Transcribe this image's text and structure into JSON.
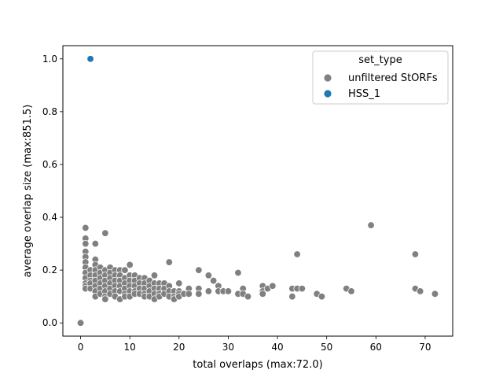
{
  "chart_data": {
    "type": "scatter",
    "xlabel": "total overlaps (max:72.0)",
    "ylabel": "average overlap size (max:851.5)",
    "xlim": [
      -3.6,
      75.6
    ],
    "ylim": [
      -0.05,
      1.05
    ],
    "x_ticks": [
      0,
      10,
      20,
      30,
      40,
      50,
      60,
      70
    ],
    "y_ticks": [
      0.0,
      0.2,
      0.4,
      0.6,
      0.8,
      1.0
    ],
    "x_tick_labels": [
      "0",
      "10",
      "20",
      "30",
      "40",
      "50",
      "60",
      "70"
    ],
    "y_tick_labels": [
      "0.0",
      "0.2",
      "0.4",
      "0.6",
      "0.8",
      "1.0"
    ],
    "grid": false,
    "legend": {
      "title": "set_type",
      "position": "top-right",
      "entries": [
        "unfiltered StORFs",
        "HSS_1"
      ]
    },
    "series": [
      {
        "name": "unfiltered StORFs",
        "color": "#808080",
        "points": [
          [
            0,
            0.0
          ],
          [
            1,
            0.36
          ],
          [
            1,
            0.32
          ],
          [
            1,
            0.3
          ],
          [
            1,
            0.27
          ],
          [
            1,
            0.25
          ],
          [
            1,
            0.23
          ],
          [
            1,
            0.21
          ],
          [
            1,
            0.19
          ],
          [
            1,
            0.17
          ],
          [
            1,
            0.15
          ],
          [
            1,
            0.14
          ],
          [
            1,
            0.13
          ],
          [
            2,
            0.2
          ],
          [
            2,
            0.18
          ],
          [
            2,
            0.16
          ],
          [
            2,
            0.15
          ],
          [
            2,
            0.13
          ],
          [
            3,
            0.3
          ],
          [
            3,
            0.24
          ],
          [
            3,
            0.22
          ],
          [
            3,
            0.2
          ],
          [
            3,
            0.18
          ],
          [
            3,
            0.16
          ],
          [
            3,
            0.14
          ],
          [
            3,
            0.12
          ],
          [
            3,
            0.1
          ],
          [
            4,
            0.21
          ],
          [
            4,
            0.19
          ],
          [
            4,
            0.17
          ],
          [
            4,
            0.15
          ],
          [
            4,
            0.13
          ],
          [
            4,
            0.11
          ],
          [
            5,
            0.34
          ],
          [
            5,
            0.2
          ],
          [
            5,
            0.18
          ],
          [
            5,
            0.16
          ],
          [
            5,
            0.14
          ],
          [
            5,
            0.12
          ],
          [
            5,
            0.1
          ],
          [
            5,
            0.09
          ],
          [
            6,
            0.21
          ],
          [
            6,
            0.19
          ],
          [
            6,
            0.17
          ],
          [
            6,
            0.15
          ],
          [
            6,
            0.13
          ],
          [
            6,
            0.11
          ],
          [
            7,
            0.2
          ],
          [
            7,
            0.18
          ],
          [
            7,
            0.16
          ],
          [
            7,
            0.14
          ],
          [
            7,
            0.12
          ],
          [
            7,
            0.1
          ],
          [
            8,
            0.2
          ],
          [
            8,
            0.18
          ],
          [
            8,
            0.16
          ],
          [
            8,
            0.14
          ],
          [
            8,
            0.12
          ],
          [
            8,
            0.09
          ],
          [
            9,
            0.2
          ],
          [
            9,
            0.17
          ],
          [
            9,
            0.15
          ],
          [
            9,
            0.13
          ],
          [
            9,
            0.11
          ],
          [
            9,
            0.1
          ],
          [
            10,
            0.22
          ],
          [
            10,
            0.18
          ],
          [
            10,
            0.16
          ],
          [
            10,
            0.14
          ],
          [
            10,
            0.12
          ],
          [
            10,
            0.1
          ],
          [
            11,
            0.18
          ],
          [
            11,
            0.16
          ],
          [
            11,
            0.14
          ],
          [
            11,
            0.12
          ],
          [
            11,
            0.11
          ],
          [
            12,
            0.17
          ],
          [
            12,
            0.15
          ],
          [
            12,
            0.13
          ],
          [
            12,
            0.11
          ],
          [
            13,
            0.17
          ],
          [
            13,
            0.15
          ],
          [
            13,
            0.13
          ],
          [
            13,
            0.11
          ],
          [
            13,
            0.1
          ],
          [
            14,
            0.16
          ],
          [
            14,
            0.14
          ],
          [
            14,
            0.12
          ],
          [
            14,
            0.1
          ],
          [
            15,
            0.18
          ],
          [
            15,
            0.15
          ],
          [
            15,
            0.13
          ],
          [
            15,
            0.11
          ],
          [
            15,
            0.09
          ],
          [
            16,
            0.15
          ],
          [
            16,
            0.13
          ],
          [
            16,
            0.11
          ],
          [
            16,
            0.1
          ],
          [
            17,
            0.15
          ],
          [
            17,
            0.13
          ],
          [
            17,
            0.11
          ],
          [
            18,
            0.23
          ],
          [
            18,
            0.14
          ],
          [
            18,
            0.12
          ],
          [
            18,
            0.1
          ],
          [
            19,
            0.12
          ],
          [
            19,
            0.1
          ],
          [
            19,
            0.09
          ],
          [
            20,
            0.15
          ],
          [
            20,
            0.12
          ],
          [
            20,
            0.11
          ],
          [
            20,
            0.1
          ],
          [
            21,
            0.11
          ],
          [
            22,
            0.13
          ],
          [
            22,
            0.11
          ],
          [
            24,
            0.2
          ],
          [
            24,
            0.13
          ],
          [
            24,
            0.11
          ],
          [
            26,
            0.18
          ],
          [
            26,
            0.12
          ],
          [
            27,
            0.16
          ],
          [
            28,
            0.14
          ],
          [
            28,
            0.12
          ],
          [
            29,
            0.12
          ],
          [
            30,
            0.12
          ],
          [
            32,
            0.19
          ],
          [
            32,
            0.11
          ],
          [
            33,
            0.13
          ],
          [
            33,
            0.11
          ],
          [
            34,
            0.1
          ],
          [
            37,
            0.14
          ],
          [
            37,
            0.12
          ],
          [
            37,
            0.11
          ],
          [
            38,
            0.13
          ],
          [
            39,
            0.14
          ],
          [
            43,
            0.13
          ],
          [
            43,
            0.1
          ],
          [
            44,
            0.26
          ],
          [
            44,
            0.13
          ],
          [
            45,
            0.13
          ],
          [
            48,
            0.11
          ],
          [
            49,
            0.1
          ],
          [
            54,
            0.13
          ],
          [
            55,
            0.12
          ],
          [
            59,
            0.37
          ],
          [
            68,
            0.26
          ],
          [
            68,
            0.13
          ],
          [
            69,
            0.12
          ],
          [
            72,
            0.11
          ]
        ]
      },
      {
        "name": "HSS_1",
        "color": "#1f77b4",
        "points": [
          [
            2,
            1.0
          ]
        ]
      }
    ]
  }
}
